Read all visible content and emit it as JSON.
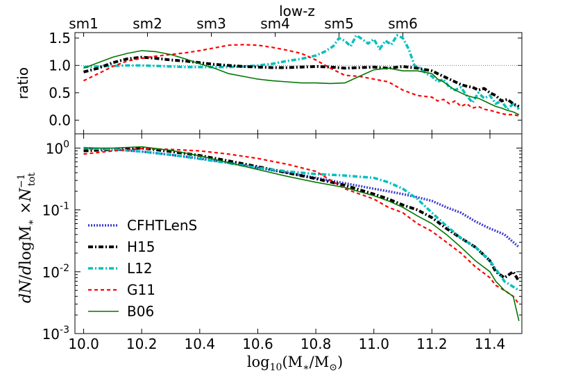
{
  "chart_data": [
    {
      "type": "line",
      "name": "ratio",
      "top_axis_title": "low-z",
      "top_ticks": [
        {
          "label": "sm1",
          "x": 10.0
        },
        {
          "label": "sm2",
          "x": 10.22
        },
        {
          "label": "sm3",
          "x": 10.44
        },
        {
          "label": "sm4",
          "x": 10.66
        },
        {
          "label": "sm5",
          "x": 10.88
        },
        {
          "label": "sm6",
          "x": 11.1
        }
      ],
      "ylabel": "ratio",
      "ylim": [
        -0.25,
        1.6
      ],
      "yticks": [
        {
          "v": 0.0,
          "label": "0.0"
        },
        {
          "v": 0.5,
          "label": "0.5"
        },
        {
          "v": 1.0,
          "label": "1.0"
        },
        {
          "v": 1.5,
          "label": "1.5"
        }
      ],
      "xlim": [
        9.97,
        11.51
      ],
      "reference_line": 1.0,
      "series": [
        {
          "name": "L12",
          "x": [
            10.0,
            10.05,
            10.1,
            10.15,
            10.2,
            10.25,
            10.3,
            10.35,
            10.4,
            10.45,
            10.5,
            10.55,
            10.6,
            10.65,
            10.7,
            10.75,
            10.8,
            10.83,
            10.86,
            10.88,
            10.9,
            10.92,
            10.94,
            10.96,
            10.98,
            11.0,
            11.02,
            11.04,
            11.06,
            11.08,
            11.1,
            11.12,
            11.14,
            11.16,
            11.18,
            11.2,
            11.22,
            11.24,
            11.26,
            11.28,
            11.3,
            11.32,
            11.34,
            11.36,
            11.38,
            11.4,
            11.42,
            11.44,
            11.46,
            11.48,
            11.5
          ],
          "y": [
            0.97,
            0.98,
            0.99,
            1.0,
            1.0,
            0.99,
            0.98,
            0.97,
            0.97,
            0.97,
            0.97,
            0.98,
            1.0,
            1.03,
            1.08,
            1.12,
            1.18,
            1.25,
            1.35,
            1.5,
            1.45,
            1.35,
            1.55,
            1.48,
            1.4,
            1.48,
            1.3,
            1.45,
            1.38,
            1.55,
            1.5,
            1.3,
            1.0,
            0.95,
            0.85,
            0.8,
            0.7,
            0.75,
            0.6,
            0.55,
            0.6,
            0.45,
            0.32,
            0.5,
            0.4,
            0.45,
            0.3,
            0.35,
            0.2,
            0.3,
            0.2
          ]
        },
        {
          "name": "H15",
          "x": [
            10.0,
            10.05,
            10.1,
            10.15,
            10.2,
            10.25,
            10.3,
            10.35,
            10.4,
            10.45,
            10.5,
            10.55,
            10.6,
            10.65,
            10.7,
            10.75,
            10.8,
            10.85,
            10.9,
            10.95,
            11.0,
            11.05,
            11.1,
            11.15,
            11.2,
            11.22,
            11.24,
            11.26,
            11.28,
            11.3,
            11.32,
            11.34,
            11.36,
            11.38,
            11.4,
            11.42,
            11.44,
            11.46,
            11.48,
            11.5
          ],
          "y": [
            0.88,
            0.95,
            1.05,
            1.12,
            1.15,
            1.13,
            1.1,
            1.08,
            1.05,
            1.02,
            1.0,
            0.98,
            0.97,
            0.96,
            0.96,
            0.97,
            0.98,
            0.97,
            0.95,
            0.96,
            0.97,
            0.95,
            0.98,
            0.95,
            0.9,
            0.85,
            0.8,
            0.75,
            0.7,
            0.65,
            0.62,
            0.6,
            0.55,
            0.58,
            0.5,
            0.45,
            0.35,
            0.38,
            0.3,
            0.25
          ]
        },
        {
          "name": "G11",
          "x": [
            10.0,
            10.05,
            10.1,
            10.15,
            10.2,
            10.25,
            10.3,
            10.35,
            10.4,
            10.45,
            10.5,
            10.55,
            10.6,
            10.65,
            10.7,
            10.75,
            10.8,
            10.85,
            10.9,
            10.95,
            11.0,
            11.05,
            11.1,
            11.15,
            11.2,
            11.22,
            11.24,
            11.26,
            11.28,
            11.3,
            11.32,
            11.34,
            11.36,
            11.38,
            11.4,
            11.42,
            11.44,
            11.46,
            11.48,
            11.5
          ],
          "y": [
            0.72,
            0.85,
            0.98,
            1.08,
            1.13,
            1.17,
            1.2,
            1.23,
            1.27,
            1.32,
            1.37,
            1.38,
            1.37,
            1.33,
            1.28,
            1.22,
            1.1,
            0.95,
            0.82,
            0.8,
            0.75,
            0.7,
            0.55,
            0.45,
            0.42,
            0.35,
            0.38,
            0.3,
            0.35,
            0.25,
            0.3,
            0.22,
            0.25,
            0.2,
            0.18,
            0.15,
            0.12,
            0.1,
            0.1,
            0.08
          ]
        },
        {
          "name": "B06",
          "x": [
            10.0,
            10.05,
            10.1,
            10.15,
            10.2,
            10.25,
            10.3,
            10.35,
            10.4,
            10.45,
            10.5,
            10.55,
            10.6,
            10.65,
            10.7,
            10.75,
            10.8,
            10.85,
            10.9,
            10.95,
            11.0,
            11.05,
            11.1,
            11.15,
            11.2,
            11.22,
            11.24,
            11.26,
            11.28,
            11.3,
            11.32,
            11.34,
            11.36,
            11.38,
            11.4,
            11.42,
            11.44,
            11.46,
            11.48,
            11.5
          ],
          "y": [
            0.95,
            1.05,
            1.15,
            1.22,
            1.27,
            1.25,
            1.2,
            1.12,
            1.03,
            0.95,
            0.85,
            0.8,
            0.75,
            0.72,
            0.7,
            0.68,
            0.68,
            0.67,
            0.68,
            0.8,
            0.92,
            0.95,
            0.9,
            0.9,
            0.85,
            0.75,
            0.7,
            0.62,
            0.55,
            0.5,
            0.45,
            0.42,
            0.4,
            0.35,
            0.3,
            0.25,
            0.22,
            0.18,
            0.15,
            0.1
          ]
        }
      ]
    },
    {
      "type": "line",
      "name": "normalized-mass-function",
      "xlabel": "log₁₀(M∗/M⊙)",
      "ylabel": "dN/dlogM∗ ×N⁻¹tot",
      "yscale": "log",
      "ylim": [
        0.001,
        1.7
      ],
      "xlim": [
        9.97,
        11.51
      ],
      "xticks": [
        {
          "v": 10.0,
          "label": "10.0"
        },
        {
          "v": 10.2,
          "label": "10.2"
        },
        {
          "v": 10.4,
          "label": "10.4"
        },
        {
          "v": 10.6,
          "label": "10.6"
        },
        {
          "v": 10.8,
          "label": "10.8"
        },
        {
          "v": 11.0,
          "label": "11.0"
        },
        {
          "v": 11.2,
          "label": "11.2"
        },
        {
          "v": 11.4,
          "label": "11.4"
        }
      ],
      "yticks": [
        {
          "v": 1.0,
          "base": "10",
          "exp": "0"
        },
        {
          "v": 0.1,
          "base": "10",
          "exp": "-1"
        },
        {
          "v": 0.01,
          "base": "10",
          "exp": "-2"
        },
        {
          "v": 0.001,
          "base": "10",
          "exp": "-3"
        }
      ],
      "legend_position": "lower-left",
      "series": [
        {
          "name": "CFHTLenS",
          "x": [
            10.0,
            10.1,
            10.2,
            10.3,
            10.4,
            10.5,
            10.6,
            10.7,
            10.8,
            10.9,
            11.0,
            11.05,
            11.1,
            11.15,
            11.2,
            11.25,
            11.3,
            11.35,
            11.4,
            11.45,
            11.5
          ],
          "y": [
            1.0,
            0.95,
            0.88,
            0.78,
            0.68,
            0.58,
            0.48,
            0.4,
            0.33,
            0.27,
            0.22,
            0.2,
            0.18,
            0.16,
            0.14,
            0.11,
            0.09,
            0.065,
            0.05,
            0.04,
            0.025
          ]
        },
        {
          "name": "H15",
          "x": [
            10.0,
            10.1,
            10.2,
            10.3,
            10.4,
            10.5,
            10.6,
            10.7,
            10.8,
            10.9,
            11.0,
            11.05,
            11.1,
            11.15,
            11.2,
            11.25,
            11.3,
            11.35,
            11.4,
            11.42,
            11.45,
            11.48,
            11.5
          ],
          "y": [
            0.9,
            0.95,
            1.0,
            0.88,
            0.76,
            0.62,
            0.5,
            0.4,
            0.32,
            0.25,
            0.18,
            0.15,
            0.12,
            0.1,
            0.075,
            0.05,
            0.035,
            0.025,
            0.015,
            0.01,
            0.008,
            0.01,
            0.007
          ]
        },
        {
          "name": "L12",
          "x": [
            10.0,
            10.1,
            10.2,
            10.3,
            10.4,
            10.5,
            10.6,
            10.7,
            10.8,
            10.9,
            11.0,
            11.05,
            11.1,
            11.15,
            11.2,
            11.25,
            11.3,
            11.35,
            11.4,
            11.45,
            11.5
          ],
          "y": [
            1.0,
            0.95,
            0.88,
            0.78,
            0.67,
            0.57,
            0.48,
            0.42,
            0.38,
            0.36,
            0.33,
            0.28,
            0.22,
            0.15,
            0.09,
            0.055,
            0.035,
            0.025,
            0.015,
            0.007,
            0.005
          ]
        },
        {
          "name": "G11",
          "x": [
            10.0,
            10.1,
            10.2,
            10.3,
            10.4,
            10.5,
            10.6,
            10.7,
            10.8,
            10.9,
            11.0,
            11.05,
            11.1,
            11.15,
            11.2,
            11.25,
            11.3,
            11.35,
            11.4,
            11.42,
            11.45,
            11.48,
            11.5
          ],
          "y": [
            0.8,
            0.9,
            0.98,
            0.95,
            0.9,
            0.8,
            0.68,
            0.55,
            0.42,
            0.22,
            0.15,
            0.11,
            0.09,
            0.06,
            0.045,
            0.03,
            0.02,
            0.012,
            0.008,
            0.006,
            0.005,
            0.004,
            0.003
          ]
        },
        {
          "name": "B06",
          "x": [
            10.0,
            10.1,
            10.2,
            10.3,
            10.4,
            10.5,
            10.6,
            10.7,
            10.8,
            10.9,
            11.0,
            11.05,
            11.1,
            11.15,
            11.2,
            11.25,
            11.3,
            11.35,
            11.4,
            11.42,
            11.45,
            11.48,
            11.5
          ],
          "y": [
            1.0,
            1.0,
            1.05,
            0.92,
            0.75,
            0.58,
            0.45,
            0.35,
            0.28,
            0.23,
            0.17,
            0.14,
            0.11,
            0.08,
            0.06,
            0.04,
            0.025,
            0.015,
            0.01,
            0.007,
            0.005,
            0.004,
            0.0016
          ]
        }
      ]
    }
  ],
  "styles": {
    "CFHTLenS": {
      "color": "#3a3ad0",
      "dash": "2,2",
      "width": 3.5,
      "legend": "CFHTLenS"
    },
    "H15": {
      "color": "#000000",
      "dash": "7,3,2,3",
      "width": 4,
      "legend": "H15"
    },
    "L12": {
      "color": "#00bfbf",
      "dash": "7,3,2,3",
      "width": 3.5,
      "legend": "L12"
    },
    "G11": {
      "color": "#ff0000",
      "dash": "5,4",
      "width": 2.2,
      "legend": "G11"
    },
    "B06": {
      "color": "#007700",
      "dash": "",
      "width": 1.6,
      "legend": "B06"
    },
    "reference": {
      "color": "#6666dd"
    }
  }
}
